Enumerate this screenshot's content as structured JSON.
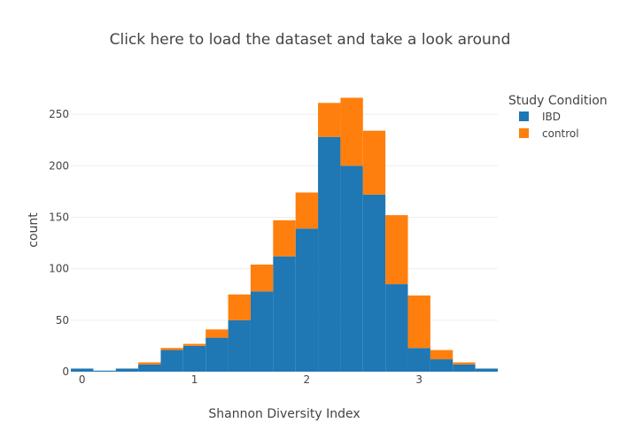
{
  "chart_data": {
    "type": "bar",
    "stacked": true,
    "title": "Click here to load the dataset and take a look around",
    "xlabel": "Shannon Diversity Index",
    "ylabel": "count",
    "x_bin_width": 0.2,
    "x_bin_starts": [
      -0.1,
      0.1,
      0.3,
      0.5,
      0.7,
      0.9,
      1.1,
      1.3,
      1.5,
      1.7,
      1.9,
      2.1,
      2.3,
      2.5,
      2.7,
      2.9,
      3.1,
      3.3,
      3.5
    ],
    "series": [
      {
        "name": "IBD",
        "color": "#1f77b4",
        "values": [
          3,
          1,
          3,
          7,
          21,
          25,
          33,
          50,
          78,
          112,
          139,
          228,
          200,
          172,
          85,
          23,
          12,
          7,
          3
        ]
      },
      {
        "name": "control",
        "color": "#ff7f0e",
        "values": [
          0,
          0,
          0,
          2,
          2,
          2,
          8,
          25,
          26,
          35,
          35,
          33,
          66,
          62,
          67,
          51,
          9,
          2,
          0
        ]
      }
    ],
    "xlim": [
      -0.1,
      3.7
    ],
    "ylim": [
      0,
      275
    ],
    "x_ticks": [
      {
        "value": 0,
        "label": "0"
      },
      {
        "value": 1,
        "label": "1"
      },
      {
        "value": 2,
        "label": "2"
      },
      {
        "value": 3,
        "label": "3"
      }
    ],
    "y_ticks": [
      {
        "value": 0,
        "label": "0"
      },
      {
        "value": 50,
        "label": "50"
      },
      {
        "value": 100,
        "label": "100"
      },
      {
        "value": 150,
        "label": "150"
      },
      {
        "value": 200,
        "label": "200"
      },
      {
        "value": 250,
        "label": "250"
      }
    ],
    "grid": true,
    "legend": {
      "title": "Study Condition",
      "position": "right"
    }
  }
}
